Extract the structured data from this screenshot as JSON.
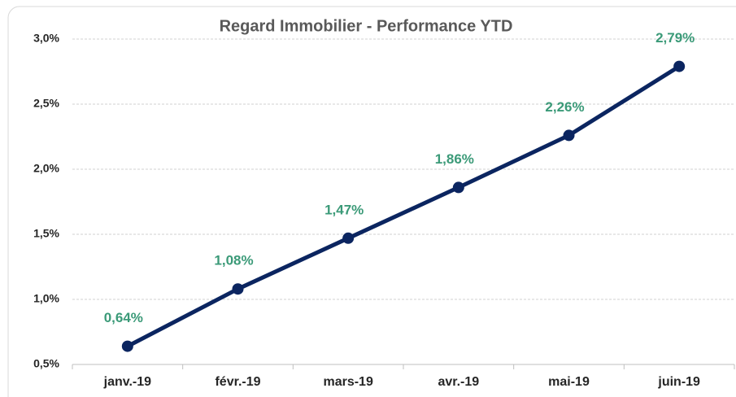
{
  "chart_data": {
    "type": "line",
    "title": "Regard Immobilier - Performance YTD",
    "categories": [
      "janv.-19",
      "févr.-19",
      "mars-19",
      "avr.-19",
      "mai-19",
      "juin-19"
    ],
    "series": [
      {
        "name": "Performance YTD",
        "color": "#0b2560",
        "values": [
          0.64,
          1.08,
          1.47,
          1.86,
          2.26,
          2.79
        ],
        "value_labels": [
          "0,64%",
          "1,08%",
          "1,47%",
          "1,86%",
          "2,26%",
          "2,79%"
        ]
      }
    ],
    "label_color": "#3b9a78",
    "ylim": [
      0.5,
      3.0
    ],
    "yticks": [
      {
        "value": 0.5,
        "label": "0,5%"
      },
      {
        "value": 1.0,
        "label": "1,0%"
      },
      {
        "value": 1.5,
        "label": "1,5%"
      },
      {
        "value": 2.0,
        "label": "2,0%"
      },
      {
        "value": 2.5,
        "label": "2,5%"
      },
      {
        "value": 3.0,
        "label": "3,0%"
      }
    ],
    "grid": true
  }
}
